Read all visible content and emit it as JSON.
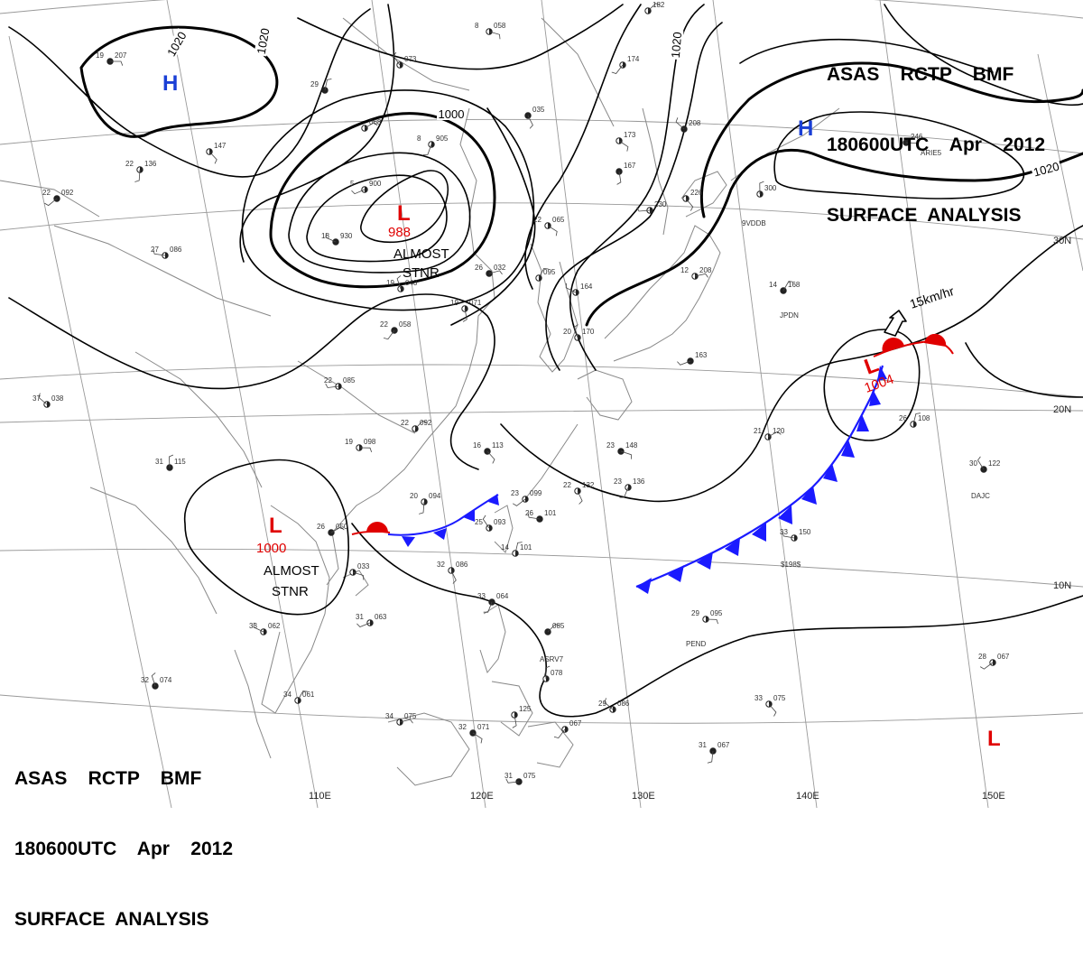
{
  "header": {
    "line1": "ASAS    RCTP    BMF",
    "line2": "180600UTC    Apr    2012",
    "line3": "SURFACE  ANALYSIS"
  },
  "colors": {
    "isobar": "#000000",
    "high": "#1a3fd6",
    "low": "#e00000",
    "cold_front": "#1a1aff",
    "warm_front": "#e00000",
    "coast": "#888888",
    "grid": "#999999",
    "station": "#333333"
  },
  "lon_labels": [
    "110E",
    "120E",
    "130E",
    "140E",
    "150E"
  ],
  "lat_labels": [
    "10N",
    "20N",
    "30N"
  ],
  "isobar_labels": [
    "1020",
    "1020",
    "1000",
    "1020",
    "1020"
  ],
  "pressure_centers": [
    {
      "type": "H",
      "value": ""
    },
    {
      "type": "H",
      "value": ""
    },
    {
      "type": "L",
      "value": "988"
    },
    {
      "type": "L",
      "value": "1000"
    },
    {
      "type": "L",
      "value": "1004"
    },
    {
      "type": "L",
      "value": ""
    }
  ],
  "annotations": {
    "stnr_1_a": "ALMOST",
    "stnr_1_b": "STNR",
    "stnr_2_a": "ALMOST",
    "stnr_2_b": "STNR",
    "motion": "15km/hr"
  },
  "station_codes": [
    "9VDDB",
    "ARIE5",
    "JPDN",
    "DAJC",
    "PEND",
    "ASRV7",
    "$198$"
  ],
  "stations": [
    {
      "t": "19",
      "p": "207"
    },
    {
      "t": "",
      "p": "147"
    },
    {
      "t": "22",
      "p": "136"
    },
    {
      "t": "22",
      "p": "092"
    },
    {
      "t": "27",
      "p": "086"
    },
    {
      "t": "",
      "p": "073"
    },
    {
      "t": "29",
      "p": ""
    },
    {
      "t": "",
      "p": "068"
    },
    {
      "t": "8",
      "p": "058"
    },
    {
      "t": "",
      "p": "035"
    },
    {
      "t": "8",
      "p": "905"
    },
    {
      "t": "5",
      "p": "900"
    },
    {
      "t": "18",
      "p": "930"
    },
    {
      "t": "19",
      "p": "043"
    },
    {
      "t": "",
      "p": "095"
    },
    {
      "t": "26",
      "p": "032"
    },
    {
      "t": "22",
      "p": "065"
    },
    {
      "t": "19",
      "p": "071"
    },
    {
      "t": "22",
      "p": "058"
    },
    {
      "t": "22",
      "p": "085"
    },
    {
      "t": "37",
      "p": "038"
    },
    {
      "t": "31",
      "p": "115"
    },
    {
      "t": "22",
      "p": "092"
    },
    {
      "t": "19",
      "p": "098"
    },
    {
      "t": "16",
      "p": "113"
    },
    {
      "t": "20",
      "p": "094"
    },
    {
      "t": "23",
      "p": "099"
    },
    {
      "t": "26",
      "p": "101"
    },
    {
      "t": "25",
      "p": "093"
    },
    {
      "t": "14",
      "p": "101"
    },
    {
      "t": "26",
      "p": "050"
    },
    {
      "t": "",
      "p": "033"
    },
    {
      "t": "32",
      "p": "086"
    },
    {
      "t": "33",
      "p": "064"
    },
    {
      "t": "31",
      "p": "063"
    },
    {
      "t": "33",
      "p": "062"
    },
    {
      "t": "32",
      "p": "074"
    },
    {
      "t": "34",
      "p": "061"
    },
    {
      "t": "34",
      "p": "075"
    },
    {
      "t": "32",
      "p": "071"
    },
    {
      "t": "",
      "p": "125"
    },
    {
      "t": "",
      "p": "067"
    },
    {
      "t": "31",
      "p": "075"
    },
    {
      "t": "29",
      "p": "086"
    },
    {
      "t": "",
      "p": "078"
    },
    {
      "t": "",
      "p": "085"
    },
    {
      "t": "29",
      "p": "095"
    },
    {
      "t": "33",
      "p": "075"
    },
    {
      "t": "31",
      "p": "067"
    },
    {
      "t": "28",
      "p": "067"
    },
    {
      "t": "33",
      "p": "150"
    },
    {
      "t": "30",
      "p": "122"
    },
    {
      "t": "26",
      "p": "108"
    },
    {
      "t": "21",
      "p": "120"
    },
    {
      "t": "23",
      "p": "148"
    },
    {
      "t": "22",
      "p": "132"
    },
    {
      "t": "23",
      "p": "136"
    },
    {
      "t": "",
      "p": "163"
    },
    {
      "t": "",
      "p": "164"
    },
    {
      "t": "20",
      "p": "170"
    },
    {
      "t": "14",
      "p": "168"
    },
    {
      "t": "12",
      "p": "208"
    },
    {
      "t": "",
      "p": "173"
    },
    {
      "t": "",
      "p": "167"
    },
    {
      "t": "",
      "p": "174"
    },
    {
      "t": "",
      "p": "230"
    },
    {
      "t": "",
      "p": "208"
    },
    {
      "t": "",
      "p": "300"
    },
    {
      "t": "",
      "p": "182"
    },
    {
      "t": "",
      "p": "246"
    },
    {
      "t": "",
      "p": "226"
    }
  ]
}
